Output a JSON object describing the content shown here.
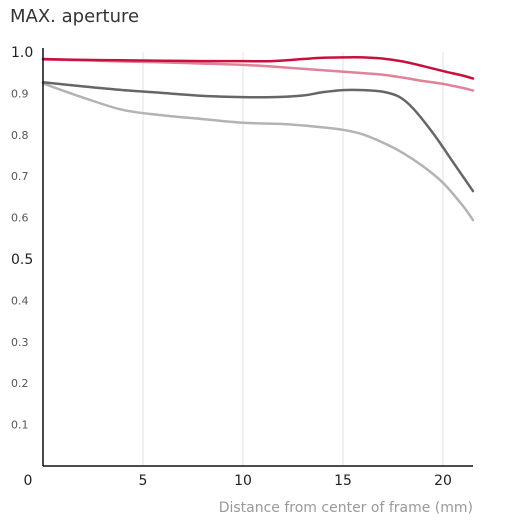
{
  "chart_data": {
    "type": "line",
    "title": "MAX. aperture",
    "xlabel": "Distance from center of frame (mm)",
    "ylabel": "",
    "xlim": [
      0,
      21.5
    ],
    "ylim": [
      0,
      1.0
    ],
    "x_ticks": [
      0,
      5,
      10,
      15,
      20
    ],
    "y_ticks": [
      0.1,
      0.2,
      0.3,
      0.4,
      0.5,
      0.6,
      0.7,
      0.8,
      0.9,
      1.0
    ],
    "y_major_ticks": [
      0.5,
      1.0
    ],
    "grid": "vertical",
    "legend": "none",
    "series": [
      {
        "color": "#c8103e",
        "width": 2.5,
        "x": [
          0,
          2,
          4,
          6,
          8,
          10,
          11.5,
          13,
          14,
          15,
          16,
          17,
          18,
          19,
          20,
          21,
          21.5
        ],
        "y": [
          0.983,
          0.981,
          0.98,
          0.979,
          0.978,
          0.978,
          0.978,
          0.983,
          0.986,
          0.987,
          0.987,
          0.984,
          0.977,
          0.966,
          0.954,
          0.943,
          0.936
        ]
      },
      {
        "color": "#e0839a",
        "width": 2.5,
        "x": [
          0,
          2,
          4,
          6,
          8,
          10,
          12,
          14,
          16,
          17,
          18,
          19,
          20,
          21,
          21.5
        ],
        "y": [
          0.982,
          0.98,
          0.977,
          0.975,
          0.972,
          0.969,
          0.963,
          0.956,
          0.949,
          0.945,
          0.938,
          0.93,
          0.923,
          0.913,
          0.907
        ]
      },
      {
        "color": "#666666",
        "width": 2.5,
        "x": [
          0,
          2,
          4,
          6,
          8,
          10,
          11.5,
          13,
          14,
          15,
          16,
          17,
          17.8,
          18.5,
          19.5,
          20.5,
          21.5
        ],
        "y": [
          0.927,
          0.917,
          0.908,
          0.901,
          0.894,
          0.891,
          0.891,
          0.895,
          0.903,
          0.908,
          0.908,
          0.904,
          0.892,
          0.864,
          0.804,
          0.734,
          0.664
        ]
      },
      {
        "color": "#b3b3b3",
        "width": 2.5,
        "x": [
          0,
          2,
          4,
          6,
          8,
          10,
          12,
          14,
          15,
          16,
          17,
          18,
          19,
          20,
          21,
          21.5
        ],
        "y": [
          0.924,
          0.89,
          0.86,
          0.847,
          0.838,
          0.829,
          0.826,
          0.818,
          0.812,
          0.801,
          0.781,
          0.756,
          0.724,
          0.684,
          0.628,
          0.594
        ]
      }
    ]
  }
}
